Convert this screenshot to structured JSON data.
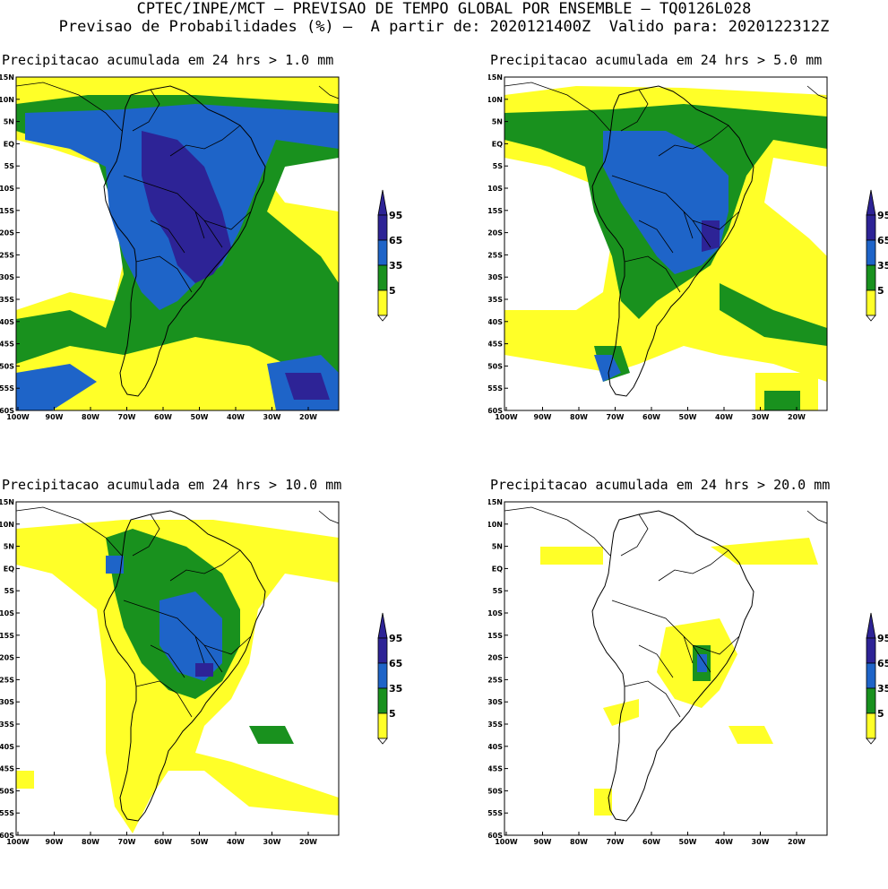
{
  "header": {
    "line1": "CPTEC/INPE/MCT – PREVISAO DE TEMPO GLOBAL POR ENSEMBLE – TQ0126L028",
    "line2": "Previsao de Probabilidades (%) –  A partir de: 2020121400Z  Valido para: 2020122312Z"
  },
  "panels": [
    {
      "title": "Precipitacao acumulada em 24 hrs > 1.0 mm"
    },
    {
      "title": "Precipitacao acumulada em 24 hrs > 5.0 mm"
    },
    {
      "title": "Precipitacao acumulada em 24 hrs > 10.0 mm"
    },
    {
      "title": "Precipitacao acumulada em 24 hrs > 20.0 mm"
    }
  ],
  "lat_labels": [
    "15N",
    "10N",
    "5N",
    "EQ",
    "5S",
    "10S",
    "15S",
    "20S",
    "25S",
    "30S",
    "35S",
    "40S",
    "45S",
    "50S",
    "55S",
    "60S"
  ],
  "lon_labels": [
    "100W",
    "90W",
    "80W",
    "70W",
    "60W",
    "50W",
    "40W",
    "30W",
    "20W"
  ],
  "legend": {
    "labels": [
      "95",
      "65",
      "35",
      "5"
    ],
    "colors": {
      "c95": "#2d2396",
      "c65": "#1e64c8",
      "c35": "#19911e",
      "c5": "#ffff28"
    }
  }
}
